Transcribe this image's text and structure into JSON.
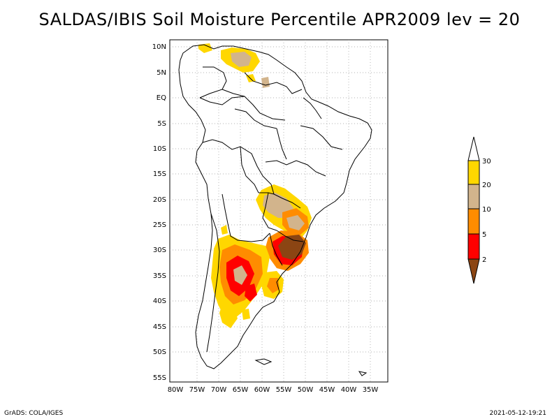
{
  "title": "SALDAS/IBIS Soil Moisture Percentile APR2009 lev = 20",
  "lat_labels": [
    "10N",
    "5N",
    "EQ",
    "5S",
    "10S",
    "15S",
    "20S",
    "25S",
    "30S",
    "35S",
    "40S",
    "45S",
    "50S",
    "55S"
  ],
  "lon_labels": [
    "80W",
    "75W",
    "70W",
    "65W",
    "60W",
    "55W",
    "50W",
    "45W",
    "40W",
    "35W"
  ],
  "legend": {
    "labels": [
      "30",
      "20",
      "10",
      "5",
      "2"
    ],
    "colors": {
      "above": "#ffffff",
      "p20_30": "#ffd700",
      "p10_20": "#d2b48c",
      "p5_10": "#ff8c00",
      "p2_5": "#ff0000",
      "below2": "#8b4513"
    }
  },
  "footer": {
    "left": "GrADS: COLA/IGES",
    "right": "2021-05-12-19:21"
  }
}
